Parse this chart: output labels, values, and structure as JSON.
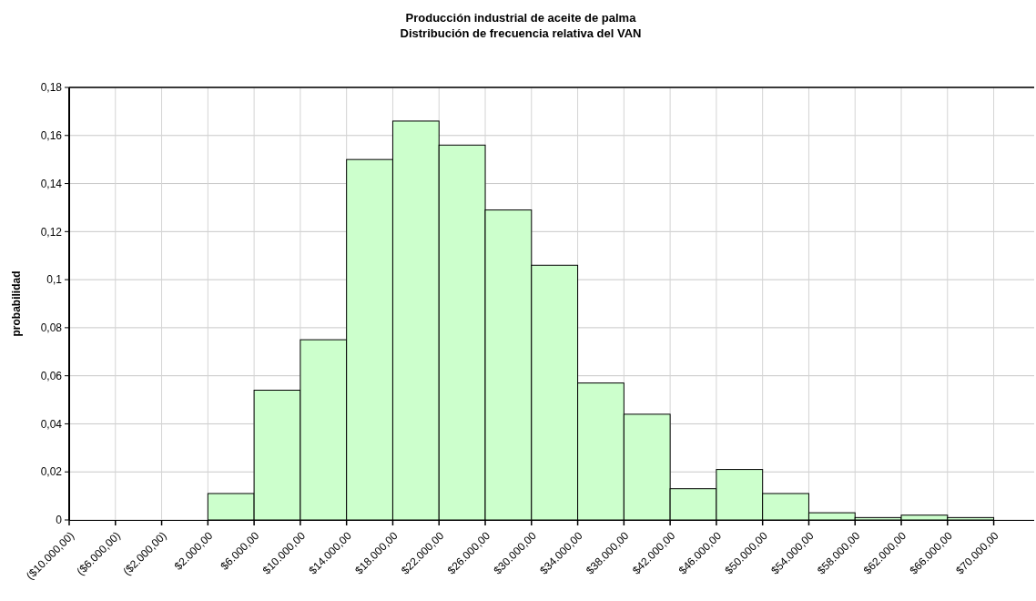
{
  "chart_data": {
    "type": "histogram",
    "title": "Producción industrial de aceite de palma",
    "subtitle": "Distribución de frecuencia relativa del VAN",
    "ylabel": "probabilidad",
    "bins": [
      -10000,
      -6000,
      -2000,
      2000,
      6000,
      10000,
      14000,
      18000,
      22000,
      26000,
      30000,
      34000,
      38000,
      42000,
      46000,
      50000,
      54000,
      58000,
      62000,
      66000,
      70000
    ],
    "values": [
      0,
      0,
      0,
      0.011,
      0.054,
      0.075,
      0.15,
      0.166,
      0.156,
      0.129,
      0.106,
      0.057,
      0.044,
      0.013,
      0.021,
      0.011,
      0.003,
      0.001,
      0.002,
      0.001
    ],
    "color": "#ccffcc",
    "xlim": [
      -10000,
      73500
    ],
    "xticks": [
      {
        "value": -10000,
        "label": "($10.000,00)"
      },
      {
        "value": -6000,
        "label": "($6.000,00)"
      },
      {
        "value": -2000,
        "label": "($2.000,00)"
      },
      {
        "value": 2000,
        "label": "$2.000,00"
      },
      {
        "value": 6000,
        "label": "$6.000,00"
      },
      {
        "value": 10000,
        "label": "$10.000,00"
      },
      {
        "value": 14000,
        "label": "$14.000,00"
      },
      {
        "value": 18000,
        "label": "$18.000,00"
      },
      {
        "value": 22000,
        "label": "$22.000,00"
      },
      {
        "value": 26000,
        "label": "$26.000,00"
      },
      {
        "value": 30000,
        "label": "$30.000,00"
      },
      {
        "value": 34000,
        "label": "$34.000,00"
      },
      {
        "value": 38000,
        "label": "$38.000,00"
      },
      {
        "value": 42000,
        "label": "$42.000,00"
      },
      {
        "value": 46000,
        "label": "$46.000,00"
      },
      {
        "value": 50000,
        "label": "$50.000,00"
      },
      {
        "value": 54000,
        "label": "$54.000,00"
      },
      {
        "value": 58000,
        "label": "$58.000,00"
      },
      {
        "value": 62000,
        "label": "$62.000,00"
      },
      {
        "value": 66000,
        "label": "$66.000,00"
      },
      {
        "value": 70000,
        "label": "$70.000,00"
      }
    ],
    "ylim": [
      0,
      0.18
    ],
    "yticks": [
      0,
      {
        "value": 0.02,
        "label": "0,02"
      },
      {
        "value": 0.04,
        "label": "0,04"
      },
      {
        "value": 0.06,
        "label": "0,06"
      },
      {
        "value": 0.08,
        "label": "0,08"
      },
      {
        "value": 0.1,
        "label": "0,1"
      },
      {
        "value": 0.12,
        "label": "0,12"
      },
      {
        "value": 0.14,
        "label": "0,14"
      },
      {
        "value": 0.16,
        "label": "0,16"
      },
      {
        "value": 0.18,
        "label": "0,18"
      }
    ],
    "grid": true
  }
}
